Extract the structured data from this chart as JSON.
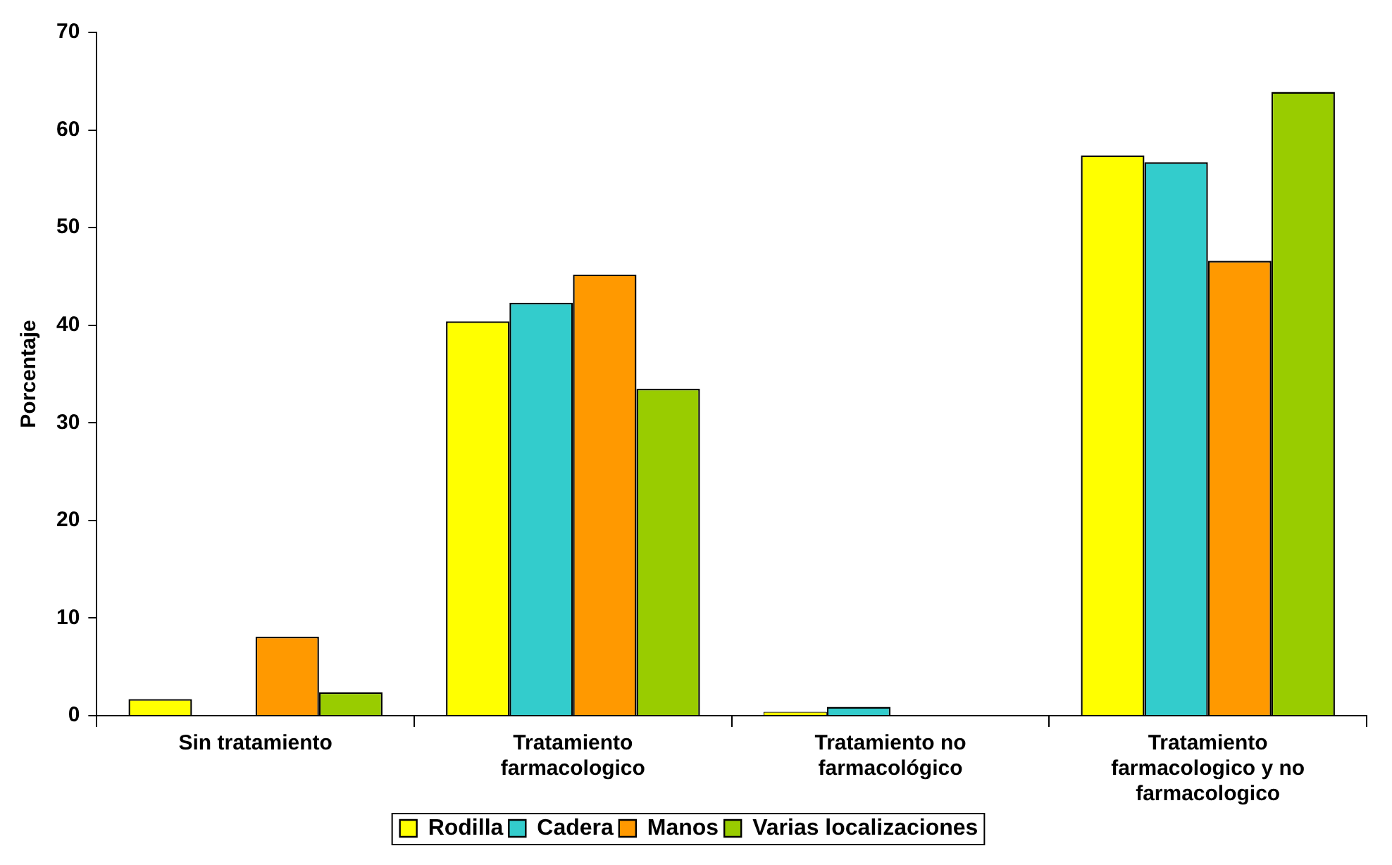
{
  "chart_data": {
    "type": "bar",
    "ylabel": "Porcentaje",
    "categories": [
      "Sin tratamiento",
      "Tratamiento farmacologico",
      "Tratamiento no farmacológico",
      "Tratamiento farmacologico y no farmacologico"
    ],
    "series": [
      {
        "name": "Rodilla",
        "color": "#ffff00",
        "values": [
          1.7,
          40.4,
          0.4,
          57.4
        ]
      },
      {
        "name": "Cadera",
        "color": "#33cccc",
        "values": [
          null,
          42.3,
          0.9,
          56.7
        ]
      },
      {
        "name": "Manos",
        "color": "#ff9900",
        "values": [
          8.1,
          45.2,
          null,
          46.6
        ]
      },
      {
        "name": "Varias localizaciones",
        "color": "#99cc00",
        "values": [
          2.4,
          33.5,
          null,
          63.9
        ]
      }
    ],
    "ylim": [
      0,
      70
    ],
    "yticks": [
      0,
      10,
      20,
      30,
      40,
      50,
      60,
      70
    ],
    "grid": false,
    "legend": "bottom"
  }
}
